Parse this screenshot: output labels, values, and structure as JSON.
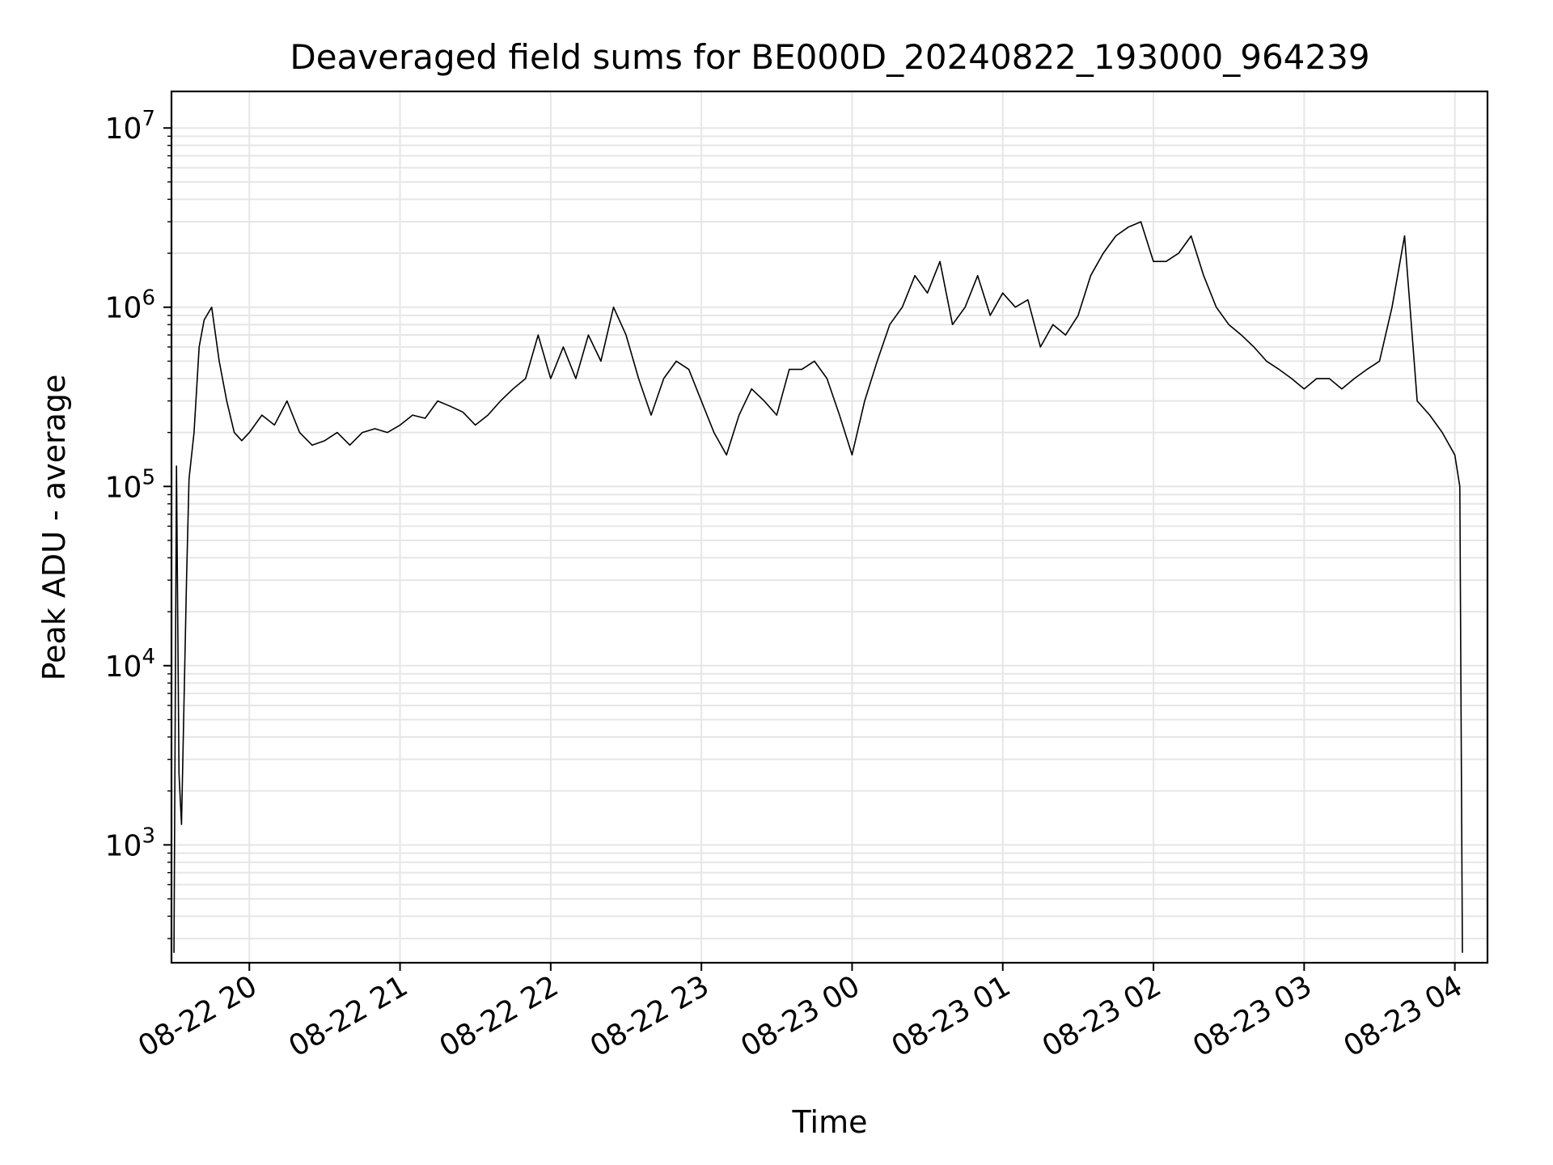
{
  "chart_data": {
    "type": "line",
    "title": "Deaveraged field sums for BE000D_20240822_193000_964239",
    "xlabel": "Time",
    "ylabel": "Peak ADU - average",
    "yscale": "log",
    "grid": true,
    "line_color": "#000000",
    "grid_color": "#e6e6e6",
    "xlim": [
      "2024-08-22 19:29",
      "2024-08-23 04:13"
    ],
    "ylim": [
      220,
      16000000
    ],
    "x_ticks": [
      {
        "time": "2024-08-22 20:00",
        "label": "08-22 20"
      },
      {
        "time": "2024-08-22 21:00",
        "label": "08-22 21"
      },
      {
        "time": "2024-08-22 22:00",
        "label": "08-22 22"
      },
      {
        "time": "2024-08-22 23:00",
        "label": "08-22 23"
      },
      {
        "time": "2024-08-23 00:00",
        "label": "08-23 00"
      },
      {
        "time": "2024-08-23 01:00",
        "label": "08-23 01"
      },
      {
        "time": "2024-08-23 02:00",
        "label": "08-23 02"
      },
      {
        "time": "2024-08-23 03:00",
        "label": "08-23 03"
      },
      {
        "time": "2024-08-23 04:00",
        "label": "08-23 04"
      }
    ],
    "y_ticks": [
      {
        "value": 1000,
        "base": "10",
        "exp": "3"
      },
      {
        "value": 10000,
        "base": "10",
        "exp": "4"
      },
      {
        "value": 100000,
        "base": "10",
        "exp": "5"
      },
      {
        "value": 1000000,
        "base": "10",
        "exp": "6"
      },
      {
        "value": 10000000,
        "base": "10",
        "exp": "7"
      }
    ],
    "series": [
      {
        "x": [
          "2024-08-22 19:30",
          "2024-08-22 19:31",
          "2024-08-22 19:32",
          "2024-08-22 19:33",
          "2024-08-22 19:35",
          "2024-08-22 19:36",
          "2024-08-22 19:38",
          "2024-08-22 19:40",
          "2024-08-22 19:42",
          "2024-08-22 19:45",
          "2024-08-22 19:48",
          "2024-08-22 19:51",
          "2024-08-22 19:54",
          "2024-08-22 19:57",
          "2024-08-22 20:00",
          "2024-08-22 20:05",
          "2024-08-22 20:10",
          "2024-08-22 20:15",
          "2024-08-22 20:20",
          "2024-08-22 20:25",
          "2024-08-22 20:30",
          "2024-08-22 20:35",
          "2024-08-22 20:40",
          "2024-08-22 20:45",
          "2024-08-22 20:50",
          "2024-08-22 20:55",
          "2024-08-22 21:00",
          "2024-08-22 21:05",
          "2024-08-22 21:10",
          "2024-08-22 21:15",
          "2024-08-22 21:20",
          "2024-08-22 21:25",
          "2024-08-22 21:30",
          "2024-08-22 21:35",
          "2024-08-22 21:40",
          "2024-08-22 21:45",
          "2024-08-22 21:50",
          "2024-08-22 21:55",
          "2024-08-22 22:00",
          "2024-08-22 22:05",
          "2024-08-22 22:10",
          "2024-08-22 22:15",
          "2024-08-22 22:20",
          "2024-08-22 22:25",
          "2024-08-22 22:30",
          "2024-08-22 22:35",
          "2024-08-22 22:40",
          "2024-08-22 22:45",
          "2024-08-22 22:50",
          "2024-08-22 22:55",
          "2024-08-22 23:00",
          "2024-08-22 23:05",
          "2024-08-22 23:10",
          "2024-08-22 23:15",
          "2024-08-22 23:20",
          "2024-08-22 23:25",
          "2024-08-22 23:30",
          "2024-08-22 23:35",
          "2024-08-22 23:40",
          "2024-08-22 23:45",
          "2024-08-22 23:50",
          "2024-08-22 23:55",
          "2024-08-23 00:00",
          "2024-08-23 00:05",
          "2024-08-23 00:10",
          "2024-08-23 00:15",
          "2024-08-23 00:20",
          "2024-08-23 00:25",
          "2024-08-23 00:30",
          "2024-08-23 00:35",
          "2024-08-23 00:40",
          "2024-08-23 00:45",
          "2024-08-23 00:50",
          "2024-08-23 00:55",
          "2024-08-23 01:00",
          "2024-08-23 01:05",
          "2024-08-23 01:10",
          "2024-08-23 01:15",
          "2024-08-23 01:20",
          "2024-08-23 01:25",
          "2024-08-23 01:30",
          "2024-08-23 01:35",
          "2024-08-23 01:40",
          "2024-08-23 01:45",
          "2024-08-23 01:50",
          "2024-08-23 01:55",
          "2024-08-23 02:00",
          "2024-08-23 02:05",
          "2024-08-23 02:10",
          "2024-08-23 02:15",
          "2024-08-23 02:20",
          "2024-08-23 02:25",
          "2024-08-23 02:30",
          "2024-08-23 02:35",
          "2024-08-23 02:40",
          "2024-08-23 02:45",
          "2024-08-23 02:50",
          "2024-08-23 02:55",
          "2024-08-23 03:00",
          "2024-08-23 03:05",
          "2024-08-23 03:10",
          "2024-08-23 03:15",
          "2024-08-23 03:20",
          "2024-08-23 03:25",
          "2024-08-23 03:30",
          "2024-08-23 03:35",
          "2024-08-23 03:40",
          "2024-08-23 03:45",
          "2024-08-23 03:50",
          "2024-08-23 03:55",
          "2024-08-23 04:00",
          "2024-08-23 04:02",
          "2024-08-23 04:03"
        ],
        "y": [
          250,
          130000,
          2500,
          1300,
          30000,
          110000,
          200000,
          600000,
          850000,
          1000000,
          500000,
          300000,
          200000,
          180000,
          200000,
          250000,
          220000,
          300000,
          200000,
          170000,
          180000,
          200000,
          170000,
          200000,
          210000,
          200000,
          220000,
          250000,
          240000,
          300000,
          280000,
          260000,
          220000,
          250000,
          300000,
          350000,
          400000,
          700000,
          400000,
          600000,
          400000,
          700000,
          500000,
          1000000,
          700000,
          400000,
          250000,
          400000,
          500000,
          450000,
          300000,
          200000,
          150000,
          250000,
          350000,
          300000,
          250000,
          450000,
          450000,
          500000,
          400000,
          250000,
          150000,
          300000,
          500000,
          800000,
          1000000,
          1500000,
          1200000,
          1800000,
          800000,
          1000000,
          1500000,
          900000,
          1200000,
          1000000,
          1100000,
          600000,
          800000,
          700000,
          900000,
          1500000,
          2000000,
          2500000,
          2800000,
          3000000,
          1800000,
          1800000,
          2000000,
          2500000,
          1500000,
          1000000,
          800000,
          700000,
          600000,
          500000,
          450000,
          400000,
          350000,
          400000,
          400000,
          350000,
          400000,
          450000,
          500000,
          1000000,
          2500000,
          300000,
          250000,
          200000,
          150000,
          100000,
          250
        ]
      }
    ]
  }
}
